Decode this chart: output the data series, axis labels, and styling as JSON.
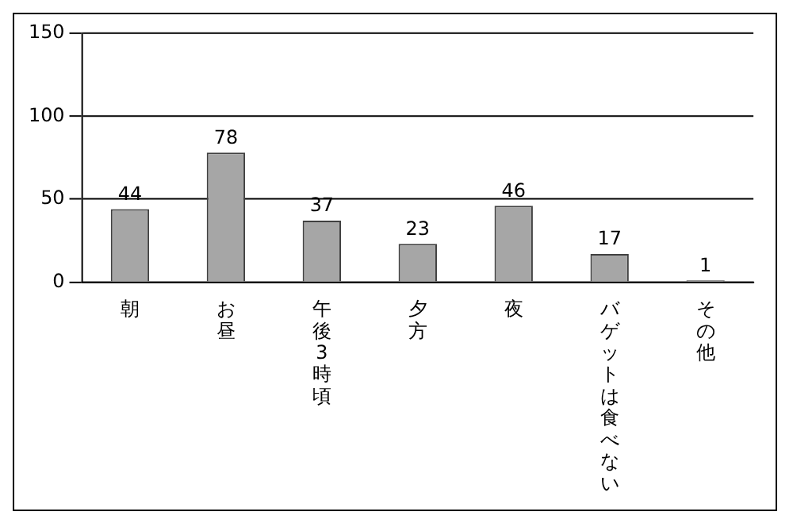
{
  "chart_data": {
    "type": "bar",
    "categories": [
      "朝",
      "お昼",
      "午後3時頃",
      "夕方",
      "夜",
      "バゲットは食べない",
      "その他"
    ],
    "values": [
      44,
      78,
      37,
      23,
      46,
      17,
      1
    ],
    "color": "#a6a6a6",
    "ylim": [
      0,
      150
    ],
    "yticks": [
      0,
      50,
      100,
      150
    ],
    "grid": "y",
    "data_labels": true,
    "legend": false
  }
}
